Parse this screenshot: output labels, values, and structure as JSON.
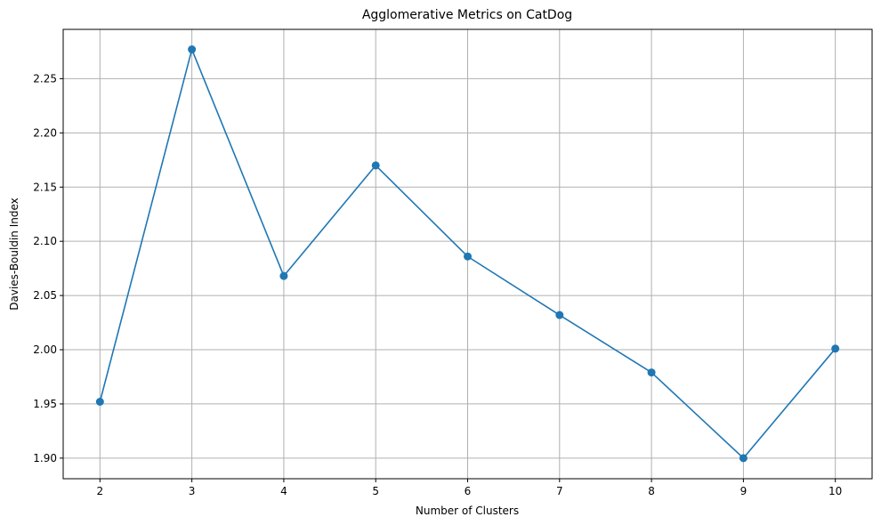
{
  "chart_data": {
    "type": "line",
    "title": "Agglomerative Metrics on CatDog",
    "xlabel": "Number of Clusters",
    "ylabel": "Davies-Bouldin Index",
    "x": [
      2,
      3,
      4,
      5,
      6,
      7,
      8,
      9,
      10
    ],
    "series": [
      {
        "values": [
          1.952,
          2.277,
          2.068,
          2.17,
          2.086,
          2.032,
          1.979,
          1.9,
          2.001
        ],
        "color": "#1f77b4",
        "marker": "circle"
      }
    ],
    "xlim": [
      1.6,
      10.4
    ],
    "ylim": [
      1.881,
      2.2955
    ],
    "xticks": [
      "2",
      "3",
      "4",
      "5",
      "6",
      "7",
      "8",
      "9",
      "10"
    ],
    "yticks": [
      "1.90",
      "1.95",
      "2.00",
      "2.05",
      "2.10",
      "2.15",
      "2.20",
      "2.25"
    ],
    "grid": true,
    "grid_color": "#b0b0b0"
  }
}
